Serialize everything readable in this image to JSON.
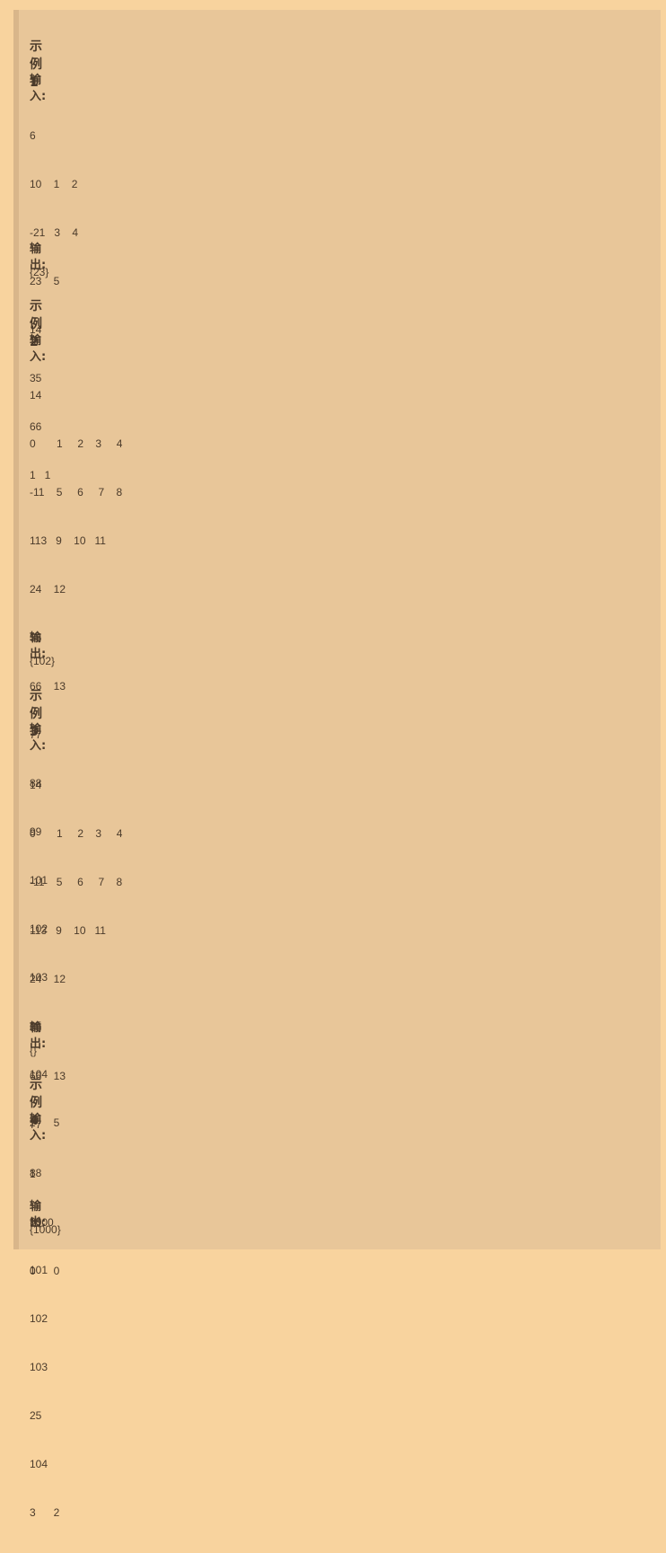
{
  "examples": [
    {
      "title": "示例1",
      "input_label": "输入:",
      "input_lines": [
        "6",
        "10    1    2",
        "-21   3    4",
        "23    5",
        "14",
        "35",
        "66",
        "1   1"
      ],
      "output_label": "输出:",
      "output": "{23}"
    },
    {
      "title": "示例2",
      "input_label": "输入:",
      "input_lines": [
        "14",
        "0       1     2    3     4",
        "-11    5     6     7    8",
        "113   9    10   11",
        "24    12",
        "35",
        "66    13",
        "77",
        "88",
        "99",
        "101",
        "102",
        "103",
        "25",
        "104",
        "2      5"
      ],
      "output_label": "输出:",
      "output": "{102}"
    },
    {
      "title": "示例3",
      "input_label": "输入:",
      "input_lines": [
        "14",
        "0       1     2    3     4",
        "-11    5     6     7    8",
        "113   9    10   11",
        "24    12",
        "35",
        "66    13",
        "77",
        "88",
        "99",
        "101",
        "102",
        "103",
        "25",
        "104",
        "3      2"
      ],
      "output_label": "输出:",
      "output": "{}"
    },
    {
      "title": "示例4",
      "input_label": "输入:",
      "input_lines": [
        "1",
        "1000",
        "0      0"
      ],
      "output_label": "输出:",
      "output": "{1000}"
    }
  ]
}
